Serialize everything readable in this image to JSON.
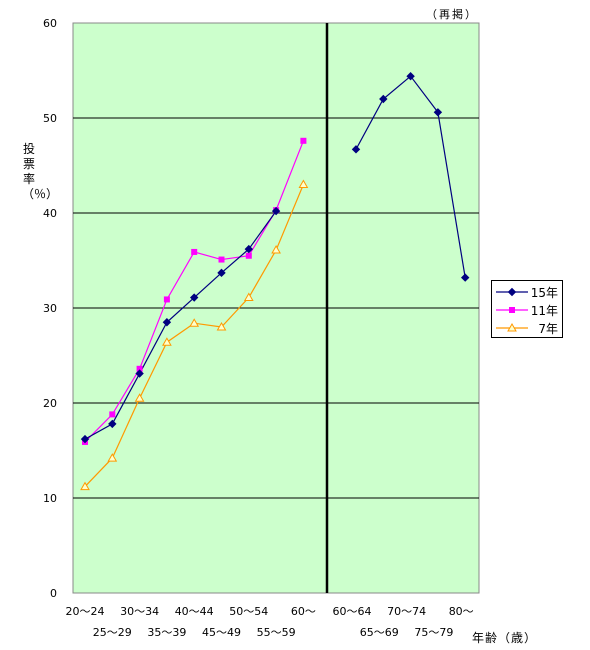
{
  "note": "（再掲）",
  "chart_data": {
    "type": "line",
    "ylabel": "投票率（％）",
    "xlabel": "年齢（歳）",
    "ylim": [
      0,
      60
    ],
    "yticks": [
      "0",
      "10",
      "20",
      "30",
      "40",
      "50",
      "60"
    ],
    "grid": true,
    "legend_position": "right",
    "background_color": "#ccffcc",
    "categories_left": [
      "20～24",
      "25～29",
      "30～34",
      "35～39",
      "40～44",
      "45～49",
      "50～54",
      "55～59",
      "60～"
    ],
    "categories_right": [
      "60～64",
      "65～69",
      "70～74",
      "75～79",
      "80～"
    ],
    "series": [
      {
        "name": "15年",
        "color": "#000080",
        "marker": "diamond",
        "left": [
          16.2,
          17.8,
          23.1,
          28.5,
          31.1,
          33.7,
          36.2,
          40.2,
          null
        ],
        "right": [
          46.7,
          52.0,
          54.4,
          50.6,
          33.2
        ]
      },
      {
        "name": "11年",
        "color": "#ff00ff",
        "marker": "square",
        "left": [
          15.9,
          18.8,
          23.6,
          30.9,
          35.9,
          35.1,
          35.5,
          40.3,
          47.6
        ],
        "right": [
          null,
          null,
          null,
          null,
          null
        ]
      },
      {
        "name": "7年",
        "color": "#ff9900",
        "marker": "triangle",
        "left": [
          11.2,
          14.2,
          20.5,
          26.4,
          28.4,
          28.0,
          31.1,
          36.1,
          43.0
        ],
        "right": [
          null,
          null,
          null,
          null,
          null
        ]
      }
    ]
  }
}
